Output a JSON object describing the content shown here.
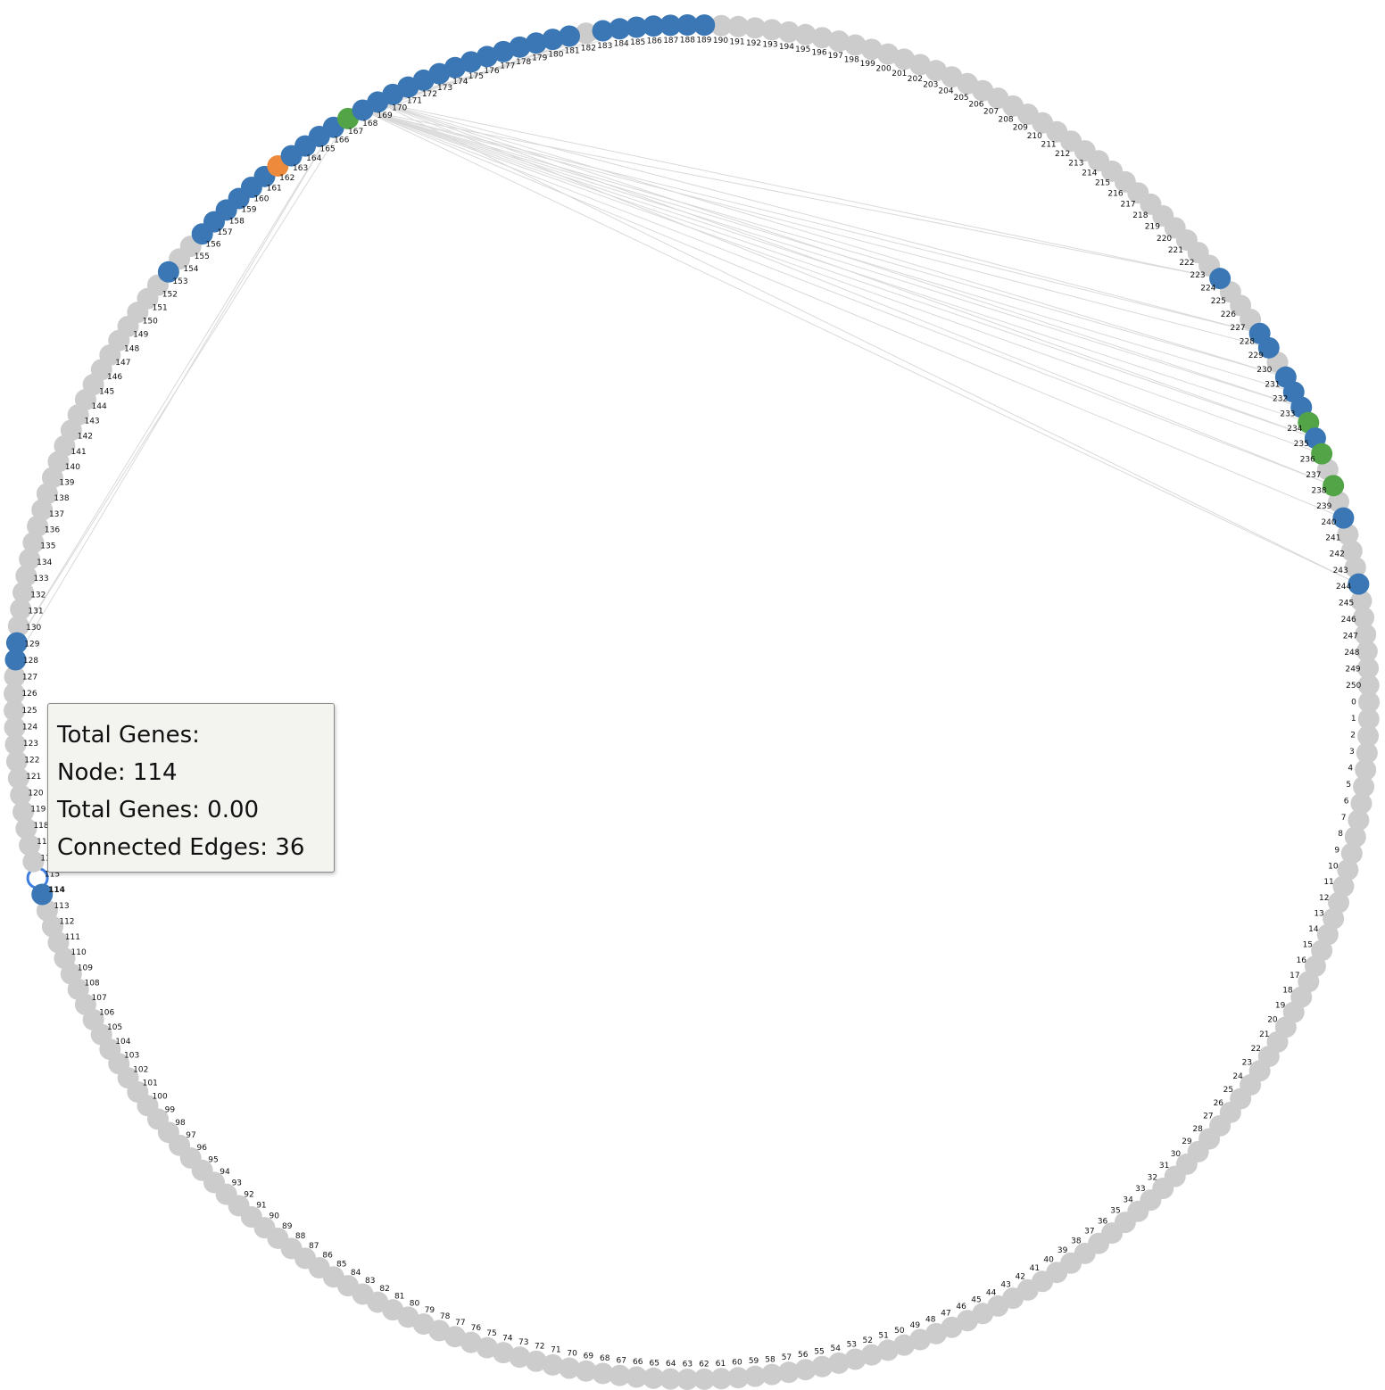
{
  "colors": {
    "default": "#cccccc",
    "blue": "#3b77b4",
    "green": "#52a447",
    "orange": "#ed8a3b",
    "edge": "#d9d9d9",
    "highlight_stroke": "#3f7ee0"
  },
  "graph": {
    "node_count": 251,
    "label_start_index": 0,
    "label_end_index": 250,
    "highlighted_node": 115,
    "bold_label": 114,
    "blue_nodes": [
      114,
      128,
      129,
      153,
      156,
      157,
      158,
      159,
      160,
      161,
      163,
      164,
      165,
      166,
      168,
      169,
      170,
      171,
      172,
      173,
      174,
      175,
      176,
      177,
      178,
      179,
      180,
      181,
      183,
      184,
      185,
      186,
      187,
      188,
      189,
      224,
      228,
      229,
      231,
      232,
      233,
      235,
      240,
      244
    ],
    "green_nodes": [
      167,
      234,
      236,
      238
    ],
    "orange_nodes": [
      162
    ],
    "edges": [
      [
        168,
        224
      ],
      [
        168,
        228
      ],
      [
        168,
        229
      ],
      [
        168,
        231
      ],
      [
        168,
        232
      ],
      [
        168,
        233
      ],
      [
        168,
        234
      ],
      [
        168,
        235
      ],
      [
        168,
        236
      ],
      [
        168,
        238
      ],
      [
        168,
        240
      ],
      [
        168,
        244
      ],
      [
        169,
        224
      ],
      [
        169,
        228
      ],
      [
        169,
        231
      ],
      [
        169,
        233
      ],
      [
        169,
        235
      ],
      [
        169,
        238
      ],
      [
        169,
        244
      ],
      [
        166,
        129
      ],
      [
        166,
        128
      ],
      [
        167,
        129
      ],
      [
        183,
        166
      ],
      [
        183,
        167
      ],
      [
        184,
        168
      ],
      [
        185,
        168
      ],
      [
        186,
        169
      ]
    ]
  },
  "tooltip": {
    "title": "Total Genes:",
    "node_line": "Node: 114",
    "genes_line": "Total Genes: 0.00",
    "edges_line": "Connected Edges: 36"
  }
}
